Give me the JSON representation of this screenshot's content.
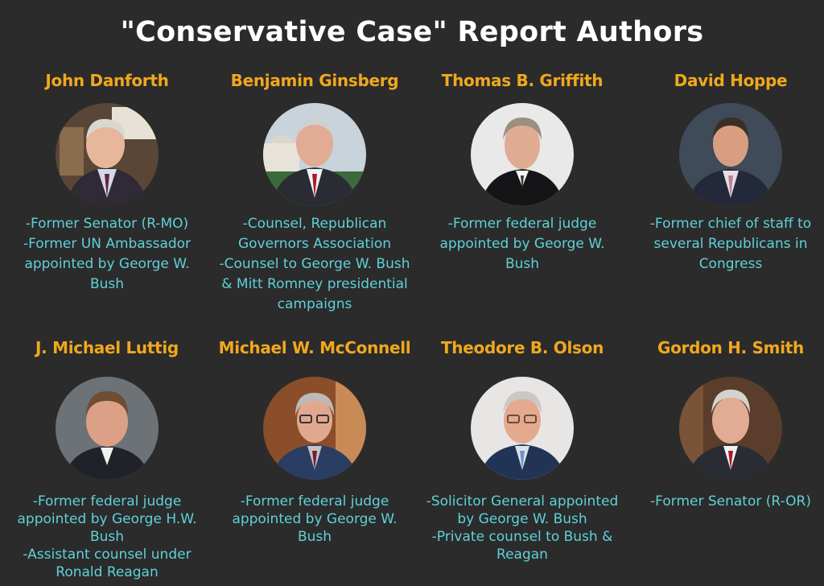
{
  "title": "\"Conservative Case\" Report Authors",
  "authors": [
    {
      "name": "John Danforth",
      "photo": "portrait-photo",
      "desc": "-Former Senator (R-MO)\n-Former UN Ambassador appointed by George W. Bush"
    },
    {
      "name": "Benjamin Ginsberg",
      "photo": "portrait-photo",
      "desc": "-Counsel, Republican Governors Association\n-Counsel to George W. Bush & Mitt Romney presidential campaigns"
    },
    {
      "name": "Thomas B. Griffith",
      "photo": "portrait-photo",
      "desc": "-Former federal judge appointed by George W. Bush"
    },
    {
      "name": "David Hoppe",
      "photo": "portrait-photo",
      "desc": "-Former chief of staff to several Republicans in Congress"
    },
    {
      "name": "J. Michael Luttig",
      "photo": "portrait-photo",
      "desc": "-Former federal judge appointed by George H.W. Bush\n-Assistant counsel under Ronald Reagan"
    },
    {
      "name": "Michael W. McConnell",
      "photo": "portrait-photo",
      "desc": "-Former federal judge appointed by George W. Bush"
    },
    {
      "name": "Theodore B. Olson",
      "photo": "portrait-photo",
      "desc": "-Solicitor General appointed by George W. Bush\n-Private counsel to Bush & Reagan"
    },
    {
      "name": "Gordon H. Smith",
      "photo": "portrait-photo",
      "desc": "-Former Senator (R-OR)"
    }
  ],
  "colors": {
    "background": "#2b2b2b",
    "title": "#ffffff",
    "name": "#f0a81e",
    "desc": "#5fd1d8"
  }
}
